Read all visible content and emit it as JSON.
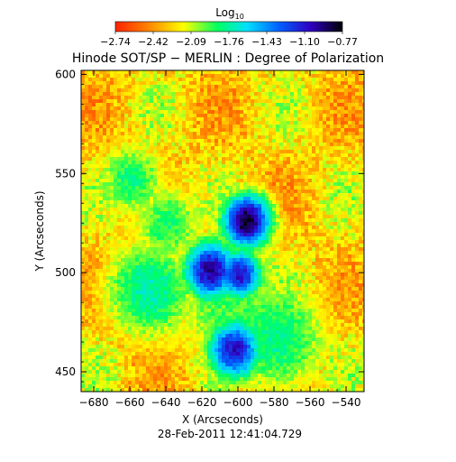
{
  "colorbar": {
    "label_main": "Log",
    "label_sub": "10",
    "ticks": [
      "−2.74",
      "−2.42",
      "−2.09",
      "−1.76",
      "−1.43",
      "−1.10",
      "−0.77"
    ],
    "colors": [
      "#ff2200",
      "#ff8000",
      "#ffff00",
      "#00ff60",
      "#00e0ff",
      "#0060ff",
      "#3000c0",
      "#000000"
    ]
  },
  "chart_data": {
    "type": "heatmap",
    "title": "Hinode SOT/SP − MERLIN : Degree of Polarization",
    "xlabel": "X (Arcseconds)",
    "ylabel": "Y (Arcseconds)",
    "xlim": [
      -687,
      -530
    ],
    "ylim": [
      440,
      602
    ],
    "xticks": [
      -680,
      -660,
      -640,
      -620,
      -600,
      -580,
      -560,
      -540
    ],
    "yticks": [
      450,
      500,
      550,
      600
    ],
    "value_scale": "log10",
    "value_range": [
      -2.74,
      -0.77
    ],
    "timestamp": "28-Feb-2011 12:41:04.729"
  }
}
